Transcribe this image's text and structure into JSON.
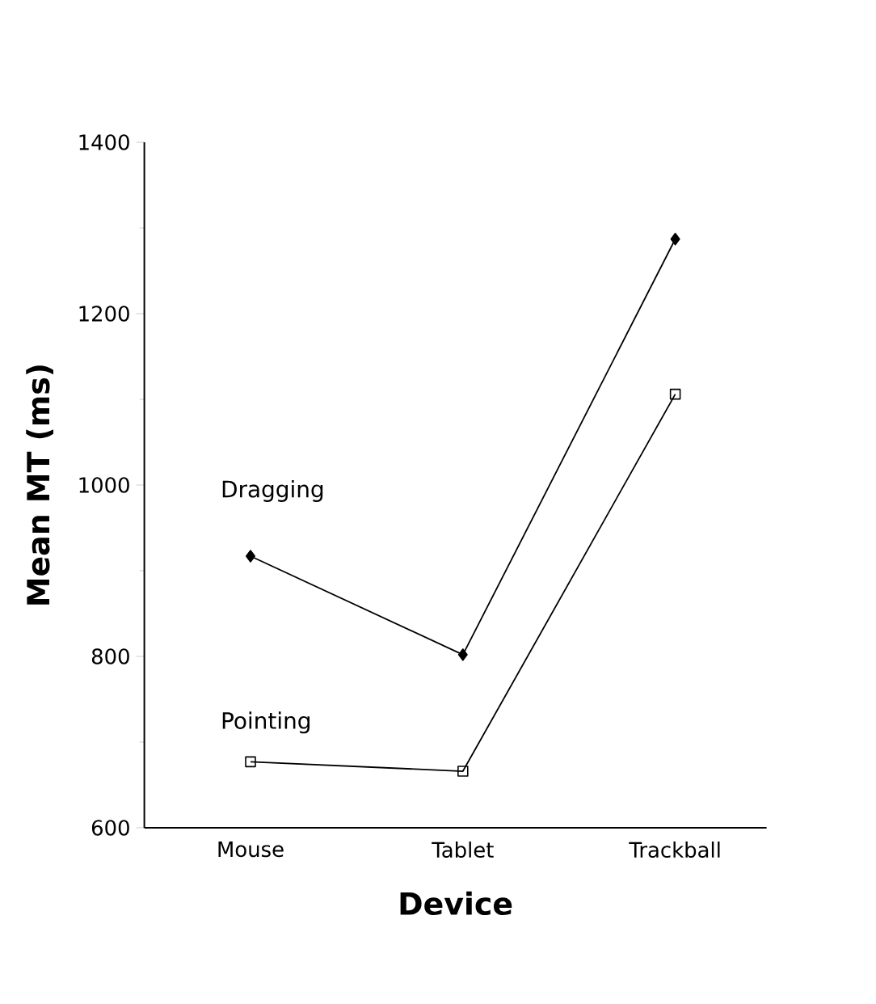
{
  "chart_data": {
    "type": "line",
    "xlabel": "Device",
    "ylabel": "Mean MT (ms)",
    "categories": [
      "Mouse",
      "Tablet",
      "Trackball"
    ],
    "series": [
      {
        "name": "Dragging",
        "color": "#000000",
        "marker": "diamond",
        "values": [
          917,
          802,
          1287
        ]
      },
      {
        "name": "Pointing",
        "color": "#000000",
        "marker": "square",
        "values": [
          677,
          666,
          1106
        ]
      }
    ],
    "ylim": [
      600,
      1400
    ],
    "yticks": [
      600,
      800,
      1000,
      1200,
      1400
    ],
    "grid": false,
    "legend": false,
    "line_style": "solid"
  }
}
